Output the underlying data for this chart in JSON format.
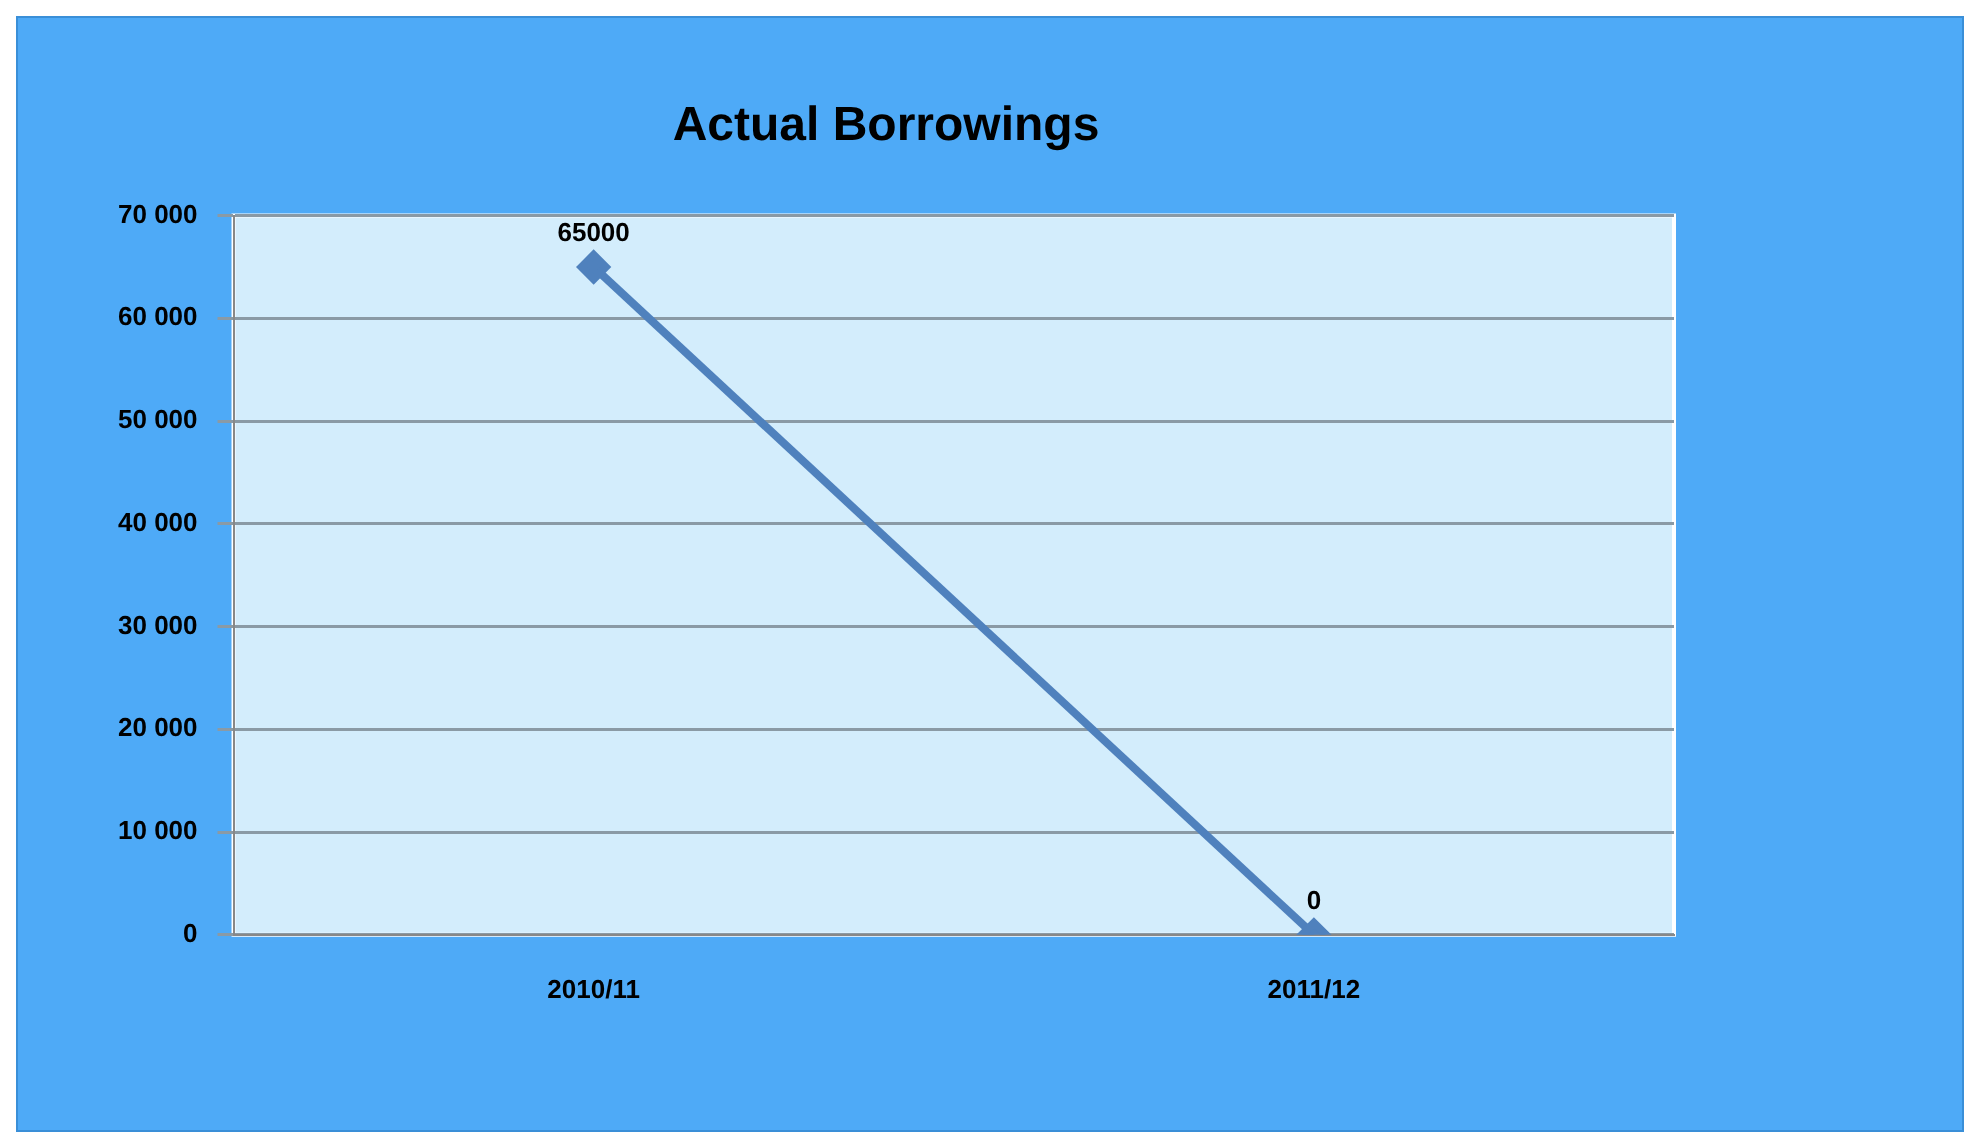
{
  "chart_data": {
    "type": "line",
    "title": "Actual Borrowings",
    "categories": [
      "2010/11",
      "2011/12"
    ],
    "series": [
      {
        "color": "#4f81bd",
        "values": [
          65000,
          0
        ]
      }
    ],
    "ylim": [
      0,
      70000
    ],
    "yticks": [
      {
        "value": 0,
        "label": "0"
      },
      {
        "value": 10000,
        "label": "10 000"
      },
      {
        "value": 20000,
        "label": "20 000"
      },
      {
        "value": 30000,
        "label": "30 000"
      },
      {
        "value": 40000,
        "label": "40 000"
      },
      {
        "value": 50000,
        "label": "50 000"
      },
      {
        "value": 60000,
        "label": "60 000"
      },
      {
        "value": 70000,
        "label": "70 000"
      }
    ],
    "grid": "y",
    "legend": false,
    "marker": "diamond",
    "line_style": "solid",
    "data_labels": true
  }
}
